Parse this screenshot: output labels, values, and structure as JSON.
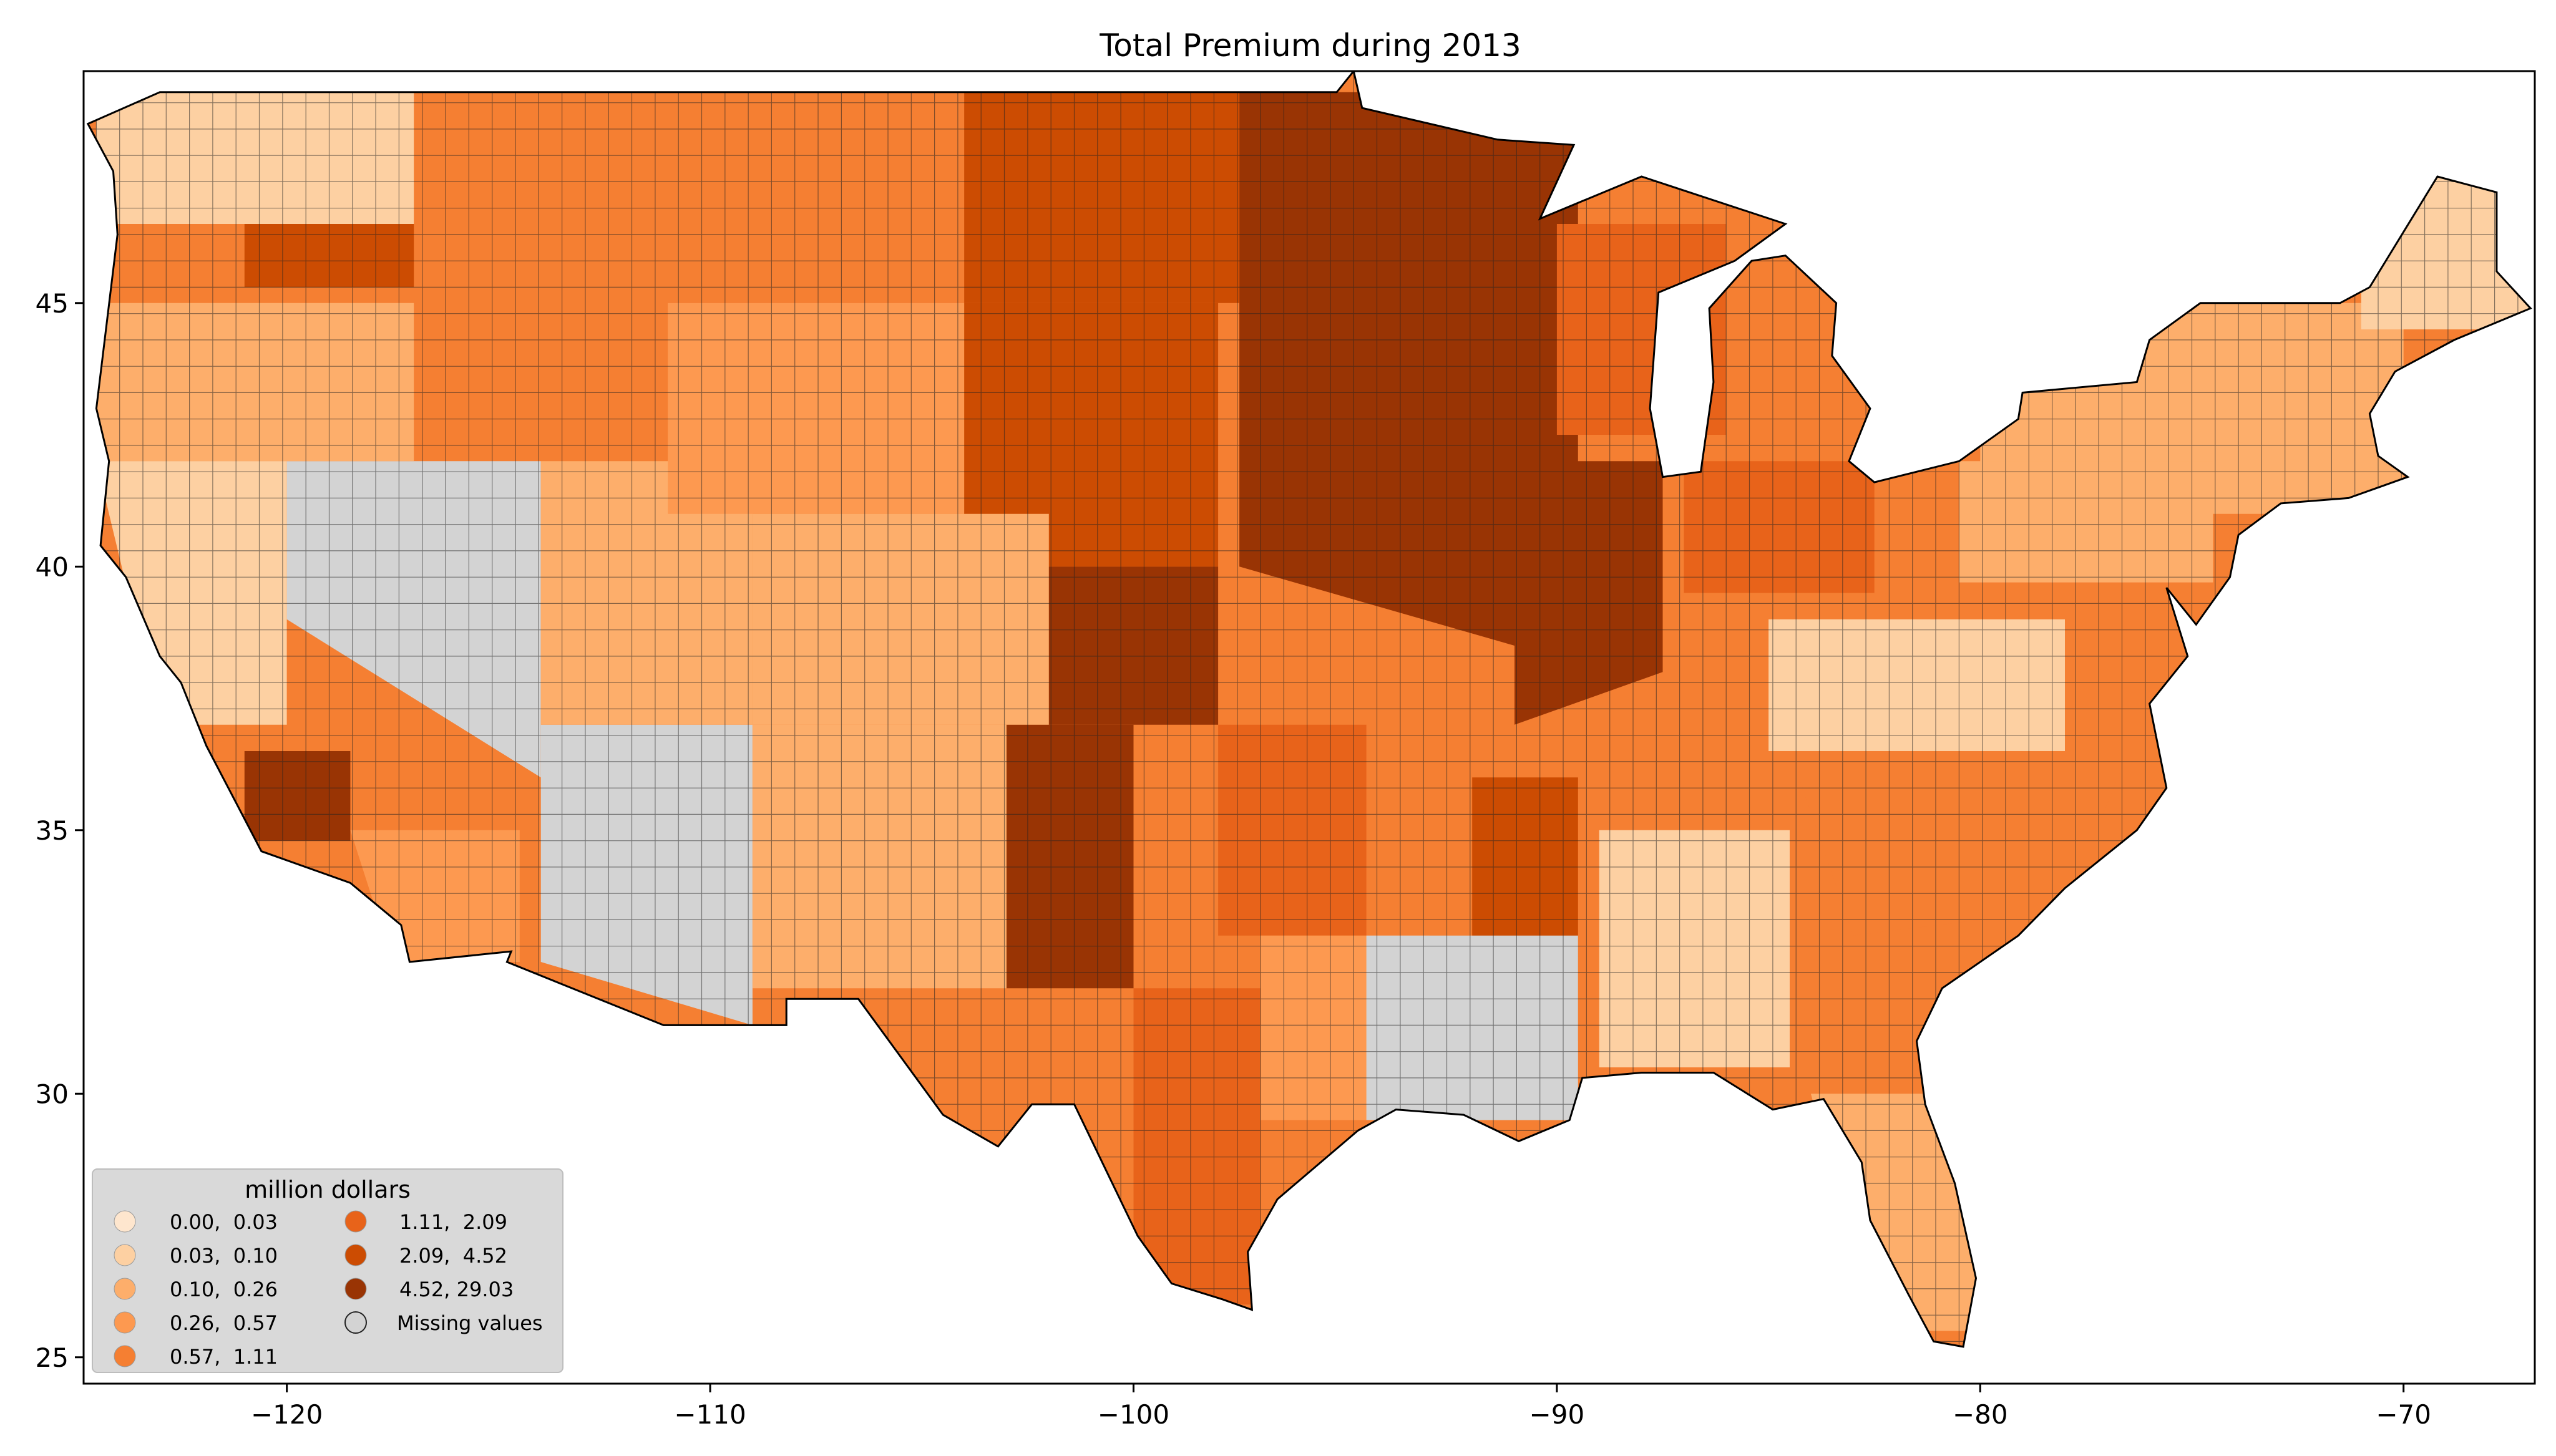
{
  "figure": {
    "title": "Total  Premium during 2013"
  },
  "map": {
    "x_ticks": [
      {
        "value": -120,
        "label": "−120"
      },
      {
        "value": -110,
        "label": "−110"
      },
      {
        "value": -100,
        "label": "−100"
      },
      {
        "value": -90,
        "label": "−90"
      },
      {
        "value": -80,
        "label": "−80"
      },
      {
        "value": -70,
        "label": "−70"
      }
    ],
    "y_ticks": [
      {
        "value": 25,
        "label": "25"
      },
      {
        "value": 30,
        "label": "30"
      },
      {
        "value": 35,
        "label": "35"
      },
      {
        "value": 40,
        "label": "40"
      },
      {
        "value": 45,
        "label": "45"
      }
    ],
    "xlim": [
      -124.8,
      -66.9
    ],
    "ylim": [
      24.5,
      49.4
    ]
  },
  "legend": {
    "title": "million dollars",
    "placement": "lower-left",
    "items": [
      {
        "label": "0.00,  0.03",
        "color": "#fee6ce"
      },
      {
        "label": "0.03,  0.10",
        "color": "#fdd0a2"
      },
      {
        "label": "0.10,  0.26",
        "color": "#fdae6b"
      },
      {
        "label": "0.26,  0.57",
        "color": "#fd9950"
      },
      {
        "label": "0.57,  1.11",
        "color": "#f57f32"
      },
      {
        "label": "1.11,  2.09",
        "color": "#e8631a"
      },
      {
        "label": "2.09,  4.52",
        "color": "#cc4c02"
      },
      {
        "label": "4.52, 29.03",
        "color": "#993404"
      },
      {
        "label": "Missing values",
        "color": "#d3d3d3"
      }
    ]
  }
}
